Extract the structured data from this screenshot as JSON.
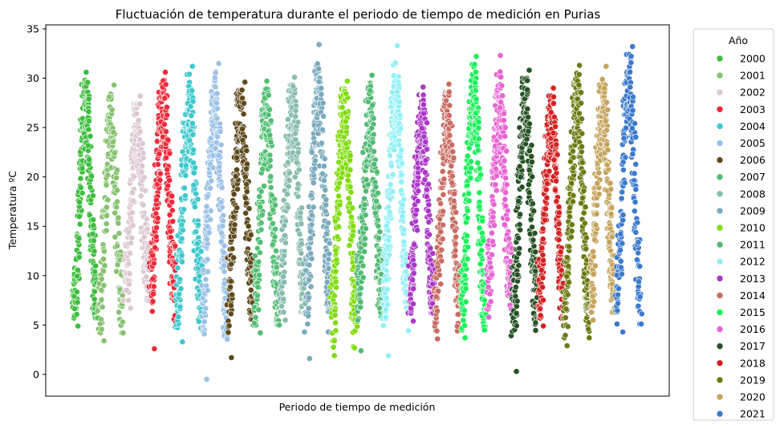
{
  "chart_data": {
    "type": "scatter",
    "title": "Fluctuación de temperatura durante el periodo de tiempo de medición en Purias",
    "xlabel": "Periodo de tiempo de medición",
    "ylabel": "Temperatura ºC",
    "ylim": [
      -2.2,
      35.4
    ],
    "yticks": [
      0,
      5,
      10,
      15,
      20,
      25,
      30,
      35
    ],
    "x_ticks_visible": false,
    "grid": false,
    "legend": {
      "title": "Año",
      "placement": "outside-right"
    },
    "marker": {
      "shape": "circle",
      "edge_color": "#ffffff"
    },
    "seasonal_pattern": "Each year traces an annual cycle: low winter temperatures (about 3–12 ºC) rising to a summer peak (about 27–33 ºC) and falling back; points are daily measurements.",
    "series": [
      {
        "name": "2000",
        "color": "#3ebd3e",
        "min": 4.9,
        "max": 30.6,
        "winter_low": 6,
        "summer_high": 27,
        "n": 260
      },
      {
        "name": "2001",
        "color": "#86c270",
        "min": 3.4,
        "max": 29.3,
        "winter_low": 6,
        "summer_high": 25,
        "n": 180
      },
      {
        "name": "2002",
        "color": "#dcc8d2",
        "min": 6.7,
        "max": 28.2,
        "winter_low": 9,
        "summer_high": 25,
        "n": 240
      },
      {
        "name": "2003",
        "color": "#ee2a3a",
        "min": 2.6,
        "max": 30.6,
        "winter_low": 9,
        "summer_high": 27,
        "n": 260
      },
      {
        "name": "2004",
        "color": "#3ec8cc",
        "min": 3.3,
        "max": 31.2,
        "winter_low": 8,
        "summer_high": 27,
        "n": 240
      },
      {
        "name": "2005",
        "color": "#9cc2e6",
        "min": -0.5,
        "max": 31.5,
        "winter_low": 7,
        "summer_high": 27,
        "n": 250
      },
      {
        "name": "2006",
        "color": "#5e4a1c",
        "min": 1.7,
        "max": 29.6,
        "winter_low": 8,
        "summer_high": 27,
        "n": 240
      },
      {
        "name": "2007",
        "color": "#52bf74",
        "min": 4.2,
        "max": 29.7,
        "winter_low": 7,
        "summer_high": 26,
        "n": 240
      },
      {
        "name": "2008",
        "color": "#88bcae",
        "min": 5.5,
        "max": 30.1,
        "winter_low": 8,
        "summer_high": 27,
        "n": 250
      },
      {
        "name": "2009",
        "color": "#7aaabc",
        "min": 1.6,
        "max": 33.4,
        "winter_low": 8,
        "summer_high": 28,
        "n": 250
      },
      {
        "name": "2010",
        "color": "#80dc0c",
        "min": 1.9,
        "max": 29.7,
        "winter_low": 6,
        "summer_high": 27,
        "n": 260
      },
      {
        "name": "2011",
        "color": "#52ba74",
        "min": 2.4,
        "max": 30.3,
        "winter_low": 8,
        "summer_high": 26,
        "n": 240
      },
      {
        "name": "2012",
        "color": "#90f0f6",
        "min": 1.9,
        "max": 33.3,
        "winter_low": 8,
        "summer_high": 28,
        "n": 260
      },
      {
        "name": "2013",
        "color": "#aa38c6",
        "min": 5.4,
        "max": 29.1,
        "winter_low": 8,
        "summer_high": 26,
        "n": 250
      },
      {
        "name": "2014",
        "color": "#c86c62",
        "min": 3.6,
        "max": 29.4,
        "winter_low": 7,
        "summer_high": 26,
        "n": 250
      },
      {
        "name": "2015",
        "color": "#1af05a",
        "min": 3.7,
        "max": 32.2,
        "winter_low": 7,
        "summer_high": 28,
        "n": 260
      },
      {
        "name": "2016",
        "color": "#e664d2",
        "min": 5.8,
        "max": 32.3,
        "winter_low": 9,
        "summer_high": 27,
        "n": 250
      },
      {
        "name": "2017",
        "color": "#265224",
        "min": 0.3,
        "max": 30.8,
        "winter_low": 7,
        "summer_high": 27,
        "n": 260
      },
      {
        "name": "2018",
        "color": "#d42222",
        "min": 4.9,
        "max": 29.0,
        "winter_low": 8,
        "summer_high": 26,
        "n": 260
      },
      {
        "name": "2019",
        "color": "#6c7a12",
        "min": 2.9,
        "max": 31.3,
        "winter_low": 7,
        "summer_high": 28,
        "n": 260
      },
      {
        "name": "2020",
        "color": "#c4a45c",
        "min": 5.5,
        "max": 31.2,
        "winter_low": 8,
        "summer_high": 27,
        "n": 260
      },
      {
        "name": "2021",
        "color": "#3c7acc",
        "min": 4.3,
        "max": 33.2,
        "winter_low": 8,
        "summer_high": 30,
        "n": 200
      }
    ]
  }
}
